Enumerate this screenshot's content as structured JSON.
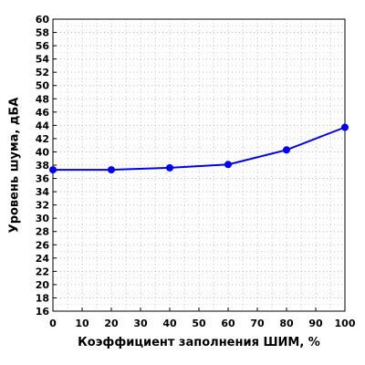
{
  "chart_data": {
    "type": "line",
    "title": "",
    "xlabel": "Коэффициент заполнения ШИМ, %",
    "ylabel": "Уровень шума, дБА",
    "xlim": [
      0,
      100
    ],
    "ylim": [
      16,
      60
    ],
    "xticks": [
      0,
      10,
      20,
      30,
      40,
      50,
      60,
      70,
      80,
      90,
      100
    ],
    "yticks": [
      16,
      18,
      20,
      22,
      24,
      26,
      28,
      30,
      32,
      34,
      36,
      38,
      40,
      42,
      44,
      46,
      48,
      50,
      52,
      54,
      56,
      58,
      60
    ],
    "grid": true,
    "series": [
      {
        "color": "#0000ee",
        "x": [
          0,
          20,
          40,
          60,
          80,
          100
        ],
        "y": [
          37.3,
          37.3,
          37.6,
          38.1,
          40.3,
          43.7
        ]
      }
    ]
  }
}
